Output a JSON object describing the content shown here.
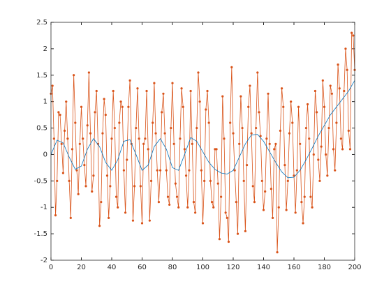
{
  "chart_data": {
    "type": "line",
    "series": [
      {
        "color": "#d95319",
        "marker": true,
        "x": [
          0,
          1,
          2,
          3,
          4,
          5,
          6,
          7,
          8,
          9,
          10,
          11,
          12,
          13,
          14,
          15,
          16,
          17,
          18,
          19,
          20,
          21,
          22,
          23,
          24,
          25,
          26,
          27,
          28,
          29,
          30,
          31,
          32,
          33,
          34,
          35,
          36,
          37,
          38,
          39,
          40,
          41,
          42,
          43,
          44,
          45,
          46,
          47,
          48,
          49,
          50,
          51,
          52,
          53,
          54,
          55,
          56,
          57,
          58,
          59,
          60,
          61,
          62,
          63,
          64,
          65,
          66,
          67,
          68,
          69,
          70,
          71,
          72,
          73,
          74,
          75,
          76,
          77,
          78,
          79,
          80,
          81,
          82,
          83,
          84,
          85,
          86,
          87,
          88,
          89,
          90,
          91,
          92,
          93,
          94,
          95,
          96,
          97,
          98,
          99,
          100,
          101,
          102,
          103,
          104,
          105,
          106,
          107,
          108,
          109,
          110,
          111,
          112,
          113,
          114,
          115,
          116,
          117,
          118,
          119,
          120,
          121,
          122,
          123,
          124,
          125,
          126,
          127,
          128,
          129,
          130,
          131,
          132,
          133,
          134,
          135,
          136,
          137,
          138,
          139,
          140,
          141,
          142,
          143,
          144,
          145,
          146,
          147,
          148,
          149,
          150,
          151,
          152,
          153,
          154,
          155,
          156,
          157,
          158,
          159,
          160,
          161,
          162,
          163,
          164,
          165,
          166,
          167,
          168,
          169,
          170,
          171,
          172,
          173,
          174,
          175,
          176,
          177,
          178,
          179,
          180,
          181,
          182,
          183,
          184,
          185,
          186,
          187,
          188,
          189,
          190,
          191,
          192,
          193,
          194,
          195,
          196,
          197,
          198,
          199,
          200
        ],
        "values": [
          1.15,
          1.3,
          0.3,
          -1.15,
          -0.5,
          0.8,
          0.75,
          0.2,
          -0.35,
          0.45,
          1.0,
          0.3,
          -0.5,
          -1.2,
          0.1,
          1.5,
          0.6,
          -0.3,
          -0.75,
          0.2,
          0.9,
          0.3,
          -0.2,
          -0.6,
          0.55,
          1.55,
          0.4,
          -0.7,
          -0.4,
          0.8,
          1.2,
          0.2,
          -1.35,
          -0.9,
          0.4,
          1.05,
          0.75,
          -0.4,
          -1.2,
          -0.6,
          0.3,
          1.2,
          0.5,
          -0.8,
          -1.0,
          0.6,
          1.0,
          0.9,
          -0.3,
          -1.1,
          -0.1,
          0.9,
          1.4,
          0.2,
          -1.25,
          -0.6,
          0.5,
          1.25,
          0.3,
          -0.6,
          -1.3,
          0.2,
          0.3,
          1.2,
          0.1,
          -1.25,
          -0.5,
          0.6,
          1.35,
          0.4,
          -0.3,
          -0.9,
          -0.3,
          0.8,
          1.15,
          0.4,
          -0.3,
          -0.8,
          -0.95,
          0.5,
          1.35,
          0.2,
          -0.55,
          -0.8,
          -1.0,
          0.3,
          1.25,
          0.9,
          0.1,
          -0.4,
          -1.0,
          -0.3,
          1.2,
          0.2,
          -0.9,
          -1.1,
          0.5,
          1.55,
          1.0,
          -0.3,
          -1.3,
          -0.5,
          0.85,
          1.2,
          0.6,
          -0.5,
          -0.9,
          -1.0,
          0.1,
          0.1,
          -0.55,
          -1.6,
          -0.8,
          1.1,
          0.3,
          -1.1,
          -1.2,
          -1.65,
          0.6,
          1.65,
          0.4,
          -0.3,
          -0.9,
          -1.5,
          0.2,
          1.1,
          0.5,
          -0.5,
          -1.45,
          -0.2,
          0.9,
          1.3,
          0.4,
          -0.6,
          -0.9,
          0.5,
          1.55,
          0.8,
          0.35,
          -0.5,
          -1.05,
          -0.7,
          0.3,
          1.15,
          0.2,
          -0.65,
          -1.2,
          0.1,
          0.2,
          -1.85,
          -1.0,
          0.45,
          1.25,
          0.9,
          -0.2,
          -1.05,
          -0.5,
          0.4,
          1.0,
          0.6,
          -0.4,
          -1.1,
          -0.3,
          0.9,
          0.2,
          -0.9,
          -1.3,
          -0.8,
          0.5,
          0.95,
          0.3,
          -0.8,
          -1.0,
          0.0,
          1.2,
          0.8,
          -0.1,
          -0.5,
          0.15,
          1.4,
          0.9,
          0.0,
          -0.4,
          0.5,
          1.3,
          1.15,
          0.1,
          -0.3,
          0.6,
          1.7,
          1.25,
          0.3,
          0.1,
          1.2,
          2.0,
          1.6,
          0.45,
          0.1,
          2.3,
          2.25,
          1.6
        ]
      },
      {
        "color": "#0072bd",
        "marker": false,
        "x": [
          0,
          4,
          8,
          12,
          16,
          20,
          24,
          28,
          32,
          36,
          40,
          44,
          48,
          52,
          56,
          60,
          64,
          68,
          72,
          76,
          80,
          84,
          88,
          92,
          96,
          100,
          104,
          108,
          112,
          116,
          120,
          124,
          128,
          132,
          136,
          140,
          144,
          148,
          152,
          156,
          160,
          164,
          168,
          172,
          176,
          180,
          184,
          188,
          192,
          196,
          200
        ],
        "values": [
          0,
          0.27,
          0.22,
          -0.05,
          -0.28,
          -0.22,
          0.1,
          0.3,
          0.15,
          -0.15,
          -0.3,
          -0.1,
          0.25,
          0.28,
          0.0,
          -0.3,
          -0.2,
          0.15,
          0.3,
          0.1,
          -0.25,
          -0.3,
          0.0,
          0.32,
          0.25,
          0.05,
          -0.15,
          -0.28,
          -0.35,
          -0.37,
          -0.3,
          -0.05,
          0.2,
          0.37,
          0.38,
          0.25,
          0.05,
          -0.15,
          -0.33,
          -0.44,
          -0.43,
          -0.3,
          -0.1,
          0.12,
          0.35,
          0.55,
          0.75,
          0.9,
          1.05,
          1.2,
          1.4
        ]
      }
    ],
    "xlim": [
      0,
      200
    ],
    "xticks": [
      0,
      20,
      40,
      60,
      80,
      100,
      120,
      140,
      160,
      180,
      200
    ],
    "ylim": [
      -2,
      2.5
    ],
    "yticks": [
      -2,
      -1.5,
      -1,
      -0.5,
      0,
      0.5,
      1,
      1.5,
      2,
      2.5
    ],
    "grid": false
  }
}
